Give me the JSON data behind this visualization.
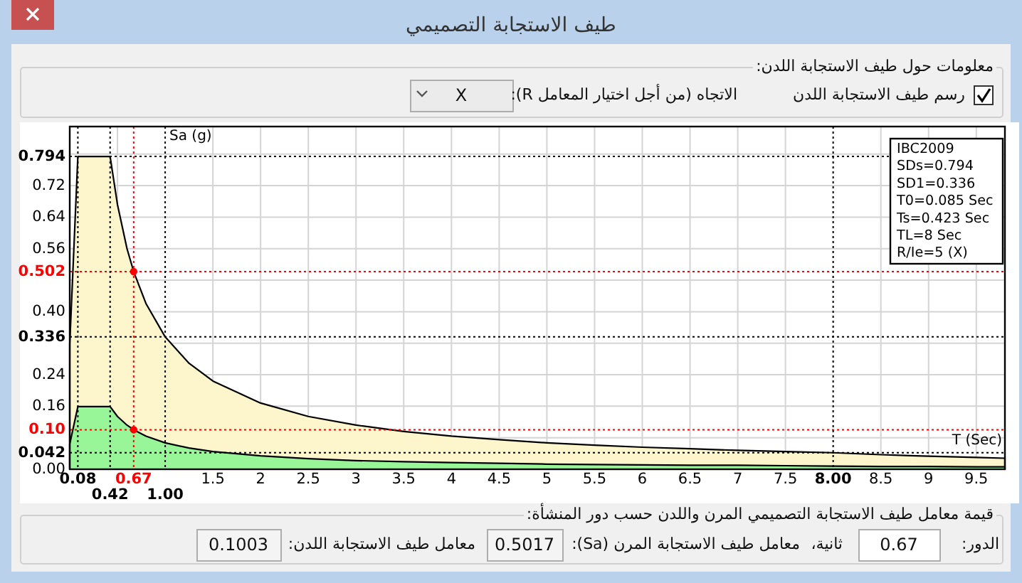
{
  "chart_data": {
    "type": "area",
    "title": "طيف الاستجابة التصميمي",
    "xlabel": "T (Sec)",
    "ylabel": "Sa (g)",
    "x": [
      0,
      0.085,
      0.423,
      0.5,
      0.6,
      0.67,
      0.8,
      1,
      1.25,
      1.5,
      2,
      2.5,
      3,
      3.5,
      4,
      4.5,
      5,
      5.5,
      6,
      6.5,
      7,
      7.5,
      8,
      8.5,
      9,
      9.5,
      9.8
    ],
    "series": [
      {
        "color": "#fdf6cc",
        "values": [
          0.318,
          0.794,
          0.794,
          0.672,
          0.56,
          0.5017,
          0.42,
          0.336,
          0.269,
          0.224,
          0.168,
          0.134,
          0.112,
          0.096,
          0.084,
          0.075,
          0.067,
          0.061,
          0.056,
          0.052,
          0.048,
          0.045,
          0.042,
          0.037,
          0.033,
          0.03,
          0.028
        ]
      },
      {
        "color": "#98f598",
        "values": [
          0.064,
          0.159,
          0.159,
          0.134,
          0.112,
          0.1003,
          0.084,
          0.067,
          0.054,
          0.045,
          0.034,
          0.027,
          0.022,
          0.019,
          0.017,
          0.015,
          0.013,
          0.012,
          0.011,
          0.01,
          0.01,
          0.009,
          0.008,
          0.007,
          0.007,
          0.006,
          0.006
        ]
      },
      {
        "type": "scatter",
        "color": "#ff0000",
        "marker": "circle",
        "x": [
          0.67,
          0.67
        ],
        "values": [
          0.5017,
          0.1003
        ]
      }
    ],
    "xlim": [
      0,
      9.8
    ],
    "ylim": [
      0,
      0.87
    ],
    "xticks": [
      {
        "value": 0,
        "label": null
      },
      {
        "value": 0.5,
        "label": null
      },
      1.5,
      2,
      2.5,
      3,
      3.5,
      4,
      4.5,
      5,
      5.5,
      6,
      6.5,
      7,
      7.5,
      8.5,
      9,
      9.5
    ],
    "yticks": [
      {
        "value": 0,
        "label": "0.00"
      },
      {
        "value": 0.08,
        "label": null
      },
      0.16,
      0.24,
      {
        "value": 0.32,
        "label": null
      },
      {
        "value": 0.4,
        "label": "0.40"
      },
      {
        "value": 0.48,
        "label": null
      },
      0.56,
      0.64,
      0.72,
      {
        "value": 0.8,
        "label": null
      }
    ],
    "grid": true,
    "ref_lines": [
      {
        "axis": "y",
        "value": 0.794,
        "label": "0.794",
        "color": "#000000"
      },
      {
        "axis": "y",
        "value": 0.502,
        "label": "0.502",
        "color": "#ff0000"
      },
      {
        "axis": "y",
        "value": 0.336,
        "label": "0.336",
        "color": "#000000"
      },
      {
        "axis": "y",
        "value": 0.1003,
        "label": "0.10",
        "color": "#ff0000"
      },
      {
        "axis": "y",
        "value": 0.042,
        "label": "0.042",
        "color": "#000000"
      },
      {
        "axis": "x",
        "value": 0.085,
        "label": "0.08",
        "color": "#000000"
      },
      {
        "axis": "x",
        "value": 0.423,
        "label": "0.42",
        "color": "#000000"
      },
      {
        "axis": "x",
        "value": 0.67,
        "label": "0.67",
        "color": "#ff0000"
      },
      {
        "axis": "x",
        "value": 1,
        "label": "1.00",
        "color": "#000000"
      },
      {
        "axis": "x",
        "value": 8,
        "label": "8.00",
        "color": "#000000"
      }
    ],
    "annotations": [
      "IBC2009",
      "SDs=0.794",
      "SD1=0.336",
      "T0=0.085 Sec",
      "Ts=0.423 Sec",
      "TL=8 Sec",
      "R/Ie=5 (X)",
      "معلومات حول طيف الاستجابة اللدن:",
      "رسم طيف الاستجابة اللدن",
      "الاتجاه (من أجل اختيار المعامل R):",
      "X",
      "قيمة معامل طيف الاستجابة التصميمي المرن واللدن حسب دور المنشأة:",
      "الدور:",
      "0.67",
      "ثانية،",
      "معامل طيف الاستجابة المرن (Sa):",
      "0.5017",
      "معامل طيف الاستجابة اللدن:",
      "0.1003"
    ]
  }
}
